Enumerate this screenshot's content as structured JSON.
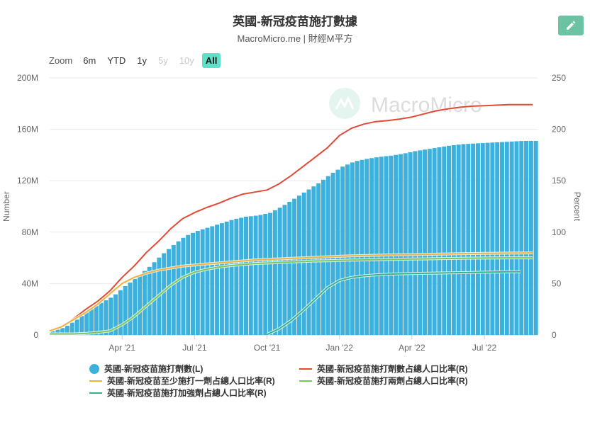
{
  "header": {
    "title": "英國-新冠疫苗施打數據",
    "subtitle": "MacroMicro.me | 財經M平方"
  },
  "watermark": "MacroMicro",
  "zoom": {
    "label": "Zoom",
    "buttons": [
      {
        "label": "6m",
        "state": "enabled"
      },
      {
        "label": "YTD",
        "state": "enabled"
      },
      {
        "label": "1y",
        "state": "enabled"
      },
      {
        "label": "5y",
        "state": "disabled"
      },
      {
        "label": "10y",
        "state": "disabled"
      },
      {
        "label": "All",
        "state": "active"
      }
    ]
  },
  "chart_data": {
    "type": "bar+line",
    "left_axis": {
      "label": "Number",
      "min": 0,
      "max": 200,
      "ticks": [
        "0",
        "40M",
        "80M",
        "120M",
        "160M",
        "200M"
      ],
      "tick_values": [
        0,
        40,
        80,
        120,
        160,
        200
      ]
    },
    "right_axis": {
      "label": "Percent",
      "min": 0,
      "max": 250,
      "ticks": [
        "0",
        "50",
        "100",
        "150",
        "200",
        "250"
      ],
      "tick_values": [
        0,
        50,
        100,
        150,
        200,
        250
      ]
    },
    "x_axis": {
      "min_month": 0,
      "max_month": 20.2,
      "ticks": [
        {
          "label": "Apr '21",
          "month": 3
        },
        {
          "label": "Jul '21",
          "month": 6
        },
        {
          "label": "Oct '21",
          "month": 9
        },
        {
          "label": "Jan '22",
          "month": 12
        },
        {
          "label": "Apr '22",
          "month": 15
        },
        {
          "label": "Jul '22",
          "month": 18
        }
      ]
    },
    "grid": true,
    "legend_position": "bottom",
    "series": [
      {
        "name": "英國-新冠疫苗施打劑數(L)",
        "type": "bar",
        "axis": "left",
        "color": "#3db1dc",
        "points": [
          [
            0,
            3
          ],
          [
            0.5,
            6
          ],
          [
            1,
            12
          ],
          [
            1.5,
            19
          ],
          [
            2,
            25
          ],
          [
            2.5,
            30
          ],
          [
            3,
            38
          ],
          [
            3.5,
            45
          ],
          [
            4,
            53
          ],
          [
            4.5,
            62
          ],
          [
            5,
            70
          ],
          [
            5.5,
            77
          ],
          [
            6,
            81
          ],
          [
            6.5,
            84
          ],
          [
            7,
            87
          ],
          [
            7.5,
            90
          ],
          [
            8,
            92
          ],
          [
            8.5,
            93
          ],
          [
            9,
            95
          ],
          [
            9.5,
            100
          ],
          [
            10,
            106
          ],
          [
            10.5,
            112
          ],
          [
            11,
            118
          ],
          [
            11.5,
            125
          ],
          [
            12,
            131
          ],
          [
            12.5,
            135
          ],
          [
            13,
            137
          ],
          [
            13.5,
            138.5
          ],
          [
            14,
            139.5
          ],
          [
            14.5,
            141
          ],
          [
            15,
            143
          ],
          [
            15.5,
            144.5
          ],
          [
            16,
            146
          ],
          [
            16.5,
            147.5
          ],
          [
            17,
            148.5
          ],
          [
            17.5,
            149
          ],
          [
            18,
            149.5
          ],
          [
            18.5,
            150
          ],
          [
            19,
            150.5
          ],
          [
            19.5,
            151
          ],
          [
            20,
            151
          ]
        ]
      },
      {
        "name": "英國-新冠疫苗施打劑數占總人口比率(R)",
        "type": "line",
        "axis": "right",
        "color": "#e04a36",
        "points": [
          [
            0,
            4
          ],
          [
            0.5,
            8
          ],
          [
            1,
            16
          ],
          [
            1.5,
            25
          ],
          [
            2,
            33
          ],
          [
            2.5,
            43
          ],
          [
            3,
            56
          ],
          [
            3.5,
            67
          ],
          [
            4,
            80
          ],
          [
            4.5,
            91
          ],
          [
            5,
            103
          ],
          [
            5.5,
            113
          ],
          [
            6,
            119
          ],
          [
            6.5,
            124
          ],
          [
            7,
            128
          ],
          [
            7.5,
            133
          ],
          [
            8,
            137
          ],
          [
            8.5,
            139
          ],
          [
            9,
            141
          ],
          [
            9.5,
            147
          ],
          [
            10,
            155
          ],
          [
            10.5,
            164
          ],
          [
            11,
            173
          ],
          [
            11.5,
            182
          ],
          [
            12,
            194
          ],
          [
            12.5,
            201
          ],
          [
            13,
            205
          ],
          [
            13.5,
            207.5
          ],
          [
            14,
            208.5
          ],
          [
            14.5,
            210
          ],
          [
            15,
            212
          ],
          [
            15.5,
            215
          ],
          [
            16,
            218
          ],
          [
            16.5,
            220
          ],
          [
            17,
            221.5
          ],
          [
            17.5,
            222.5
          ],
          [
            18,
            223
          ],
          [
            18.5,
            223.5
          ],
          [
            19,
            224
          ],
          [
            19.5,
            224
          ],
          [
            20,
            224
          ]
        ]
      },
      {
        "name": "英國-新冠疫苗至少施打一劑占總人口比率(R)",
        "type": "line",
        "axis": "right",
        "color": "#f2b13c",
        "points": [
          [
            0,
            4
          ],
          [
            0.5,
            8
          ],
          [
            1,
            15
          ],
          [
            1.5,
            22
          ],
          [
            2,
            30
          ],
          [
            2.5,
            40
          ],
          [
            3,
            50
          ],
          [
            3.5,
            56
          ],
          [
            4,
            60
          ],
          [
            4.5,
            63
          ],
          [
            5,
            65
          ],
          [
            5.5,
            67
          ],
          [
            6,
            68
          ],
          [
            6.5,
            69
          ],
          [
            7,
            70
          ],
          [
            7.5,
            71
          ],
          [
            8,
            72
          ],
          [
            8.5,
            73
          ],
          [
            9,
            73.5
          ],
          [
            9.5,
            74
          ],
          [
            10,
            74.5
          ],
          [
            10.5,
            75
          ],
          [
            11,
            75.5
          ],
          [
            11.5,
            76
          ],
          [
            12,
            76.5
          ],
          [
            12.5,
            77
          ],
          [
            13,
            77.2
          ],
          [
            13.5,
            77.5
          ],
          [
            14,
            77.8
          ],
          [
            14.5,
            78
          ],
          [
            15,
            78.2
          ],
          [
            15.5,
            78.4
          ],
          [
            16,
            78.6
          ],
          [
            16.5,
            78.8
          ],
          [
            17,
            79
          ],
          [
            17.5,
            79.2
          ],
          [
            18,
            79.4
          ],
          [
            18.5,
            79.5
          ],
          [
            19,
            79.6
          ],
          [
            19.5,
            79.7
          ],
          [
            20,
            79.8
          ]
        ]
      },
      {
        "name": "英國-新冠疫苗施打兩劑占總人口比率(R)",
        "type": "line",
        "axis": "right",
        "color": "#7dc75a",
        "points": [
          [
            0,
            1
          ],
          [
            0.5,
            1
          ],
          [
            1,
            1
          ],
          [
            1.5,
            1.5
          ],
          [
            2,
            2.5
          ],
          [
            2.5,
            4
          ],
          [
            3,
            10
          ],
          [
            3.5,
            18
          ],
          [
            4,
            28
          ],
          [
            4.5,
            38
          ],
          [
            5,
            48
          ],
          [
            5.5,
            56
          ],
          [
            6,
            61
          ],
          [
            6.5,
            64
          ],
          [
            7,
            66
          ],
          [
            7.5,
            67.5
          ],
          [
            8,
            68.5
          ],
          [
            8.5,
            69.5
          ],
          [
            9,
            70
          ],
          [
            9.5,
            70.5
          ],
          [
            10,
            71
          ],
          [
            10.5,
            71.5
          ],
          [
            11,
            72
          ],
          [
            11.5,
            72.2
          ],
          [
            12,
            72.5
          ],
          [
            12.5,
            72.8
          ],
          [
            13,
            73
          ],
          [
            13.5,
            73.2
          ],
          [
            14,
            73.4
          ],
          [
            14.5,
            73.6
          ],
          [
            15,
            73.8
          ],
          [
            15.5,
            74
          ],
          [
            16,
            74.2
          ],
          [
            16.5,
            74.4
          ],
          [
            17,
            74.6
          ],
          [
            17.5,
            74.7
          ],
          [
            18,
            74.8
          ],
          [
            18.5,
            74.9
          ],
          [
            19,
            75
          ],
          [
            19.5,
            75
          ],
          [
            20,
            75
          ]
        ]
      },
      {
        "name": "英國-新冠疫苗施打加強劑占總人口比率(R)",
        "type": "line",
        "axis": "right",
        "color": "#36b389",
        "points": [
          [
            9,
            0.5
          ],
          [
            9.5,
            6
          ],
          [
            10,
            14
          ],
          [
            10.5,
            24
          ],
          [
            11,
            35
          ],
          [
            11.5,
            46
          ],
          [
            12,
            53
          ],
          [
            12.5,
            56
          ],
          [
            13,
            57.5
          ],
          [
            13.5,
            58.5
          ],
          [
            14,
            59
          ],
          [
            14.5,
            59.5
          ],
          [
            15,
            59.8
          ],
          [
            15.5,
            60
          ],
          [
            16,
            60.2
          ],
          [
            16.5,
            60.4
          ],
          [
            17,
            60.6
          ],
          [
            17.5,
            60.8
          ],
          [
            18,
            61
          ],
          [
            18.5,
            61.2
          ],
          [
            19,
            61.4
          ],
          [
            19.5,
            61.5
          ]
        ]
      }
    ]
  }
}
